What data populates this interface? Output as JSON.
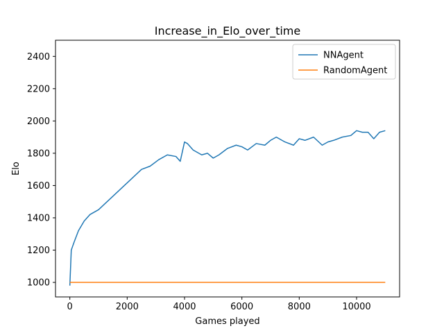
{
  "chart_data": {
    "type": "line",
    "title": "Increase_in_Elo_over_time",
    "xlabel": "Games played",
    "ylabel": "Elo",
    "xlim": [
      -500,
      11500
    ],
    "ylim": [
      910,
      2500
    ],
    "xticks": [
      0,
      2000,
      4000,
      6000,
      8000,
      10000
    ],
    "yticks": [
      1000,
      1200,
      1400,
      1600,
      1800,
      2000,
      2200,
      2400
    ],
    "legend_position": "top-right",
    "grid": false,
    "series": [
      {
        "name": "NNAgent",
        "color": "#1f77b4",
        "x": [
          0,
          50,
          150,
          300,
          500,
          700,
          1000,
          1300,
          1600,
          1900,
          2200,
          2500,
          2800,
          3100,
          3400,
          3700,
          3850,
          4000,
          4100,
          4300,
          4600,
          4800,
          5000,
          5200,
          5500,
          5800,
          6000,
          6200,
          6500,
          6800,
          7000,
          7200,
          7500,
          7800,
          8000,
          8200,
          8500,
          8800,
          9000,
          9200,
          9500,
          9800,
          10000,
          10200,
          10400,
          10600,
          10800,
          11000
        ],
        "y": [
          980,
          1200,
          1250,
          1320,
          1380,
          1420,
          1450,
          1500,
          1550,
          1600,
          1650,
          1700,
          1720,
          1760,
          1790,
          1780,
          1750,
          1870,
          1860,
          1820,
          1790,
          1800,
          1770,
          1790,
          1830,
          1850,
          1840,
          1820,
          1860,
          1850,
          1880,
          1900,
          1870,
          1850,
          1890,
          1880,
          1900,
          1850,
          1870,
          1880,
          1900,
          1910,
          1940,
          1930,
          1930,
          1890,
          1930,
          1940
        ]
      },
      {
        "name": "RandomAgent",
        "color": "#ff7f0e",
        "x": [
          0,
          11000
        ],
        "y": [
          1000,
          1000
        ]
      }
    ]
  }
}
